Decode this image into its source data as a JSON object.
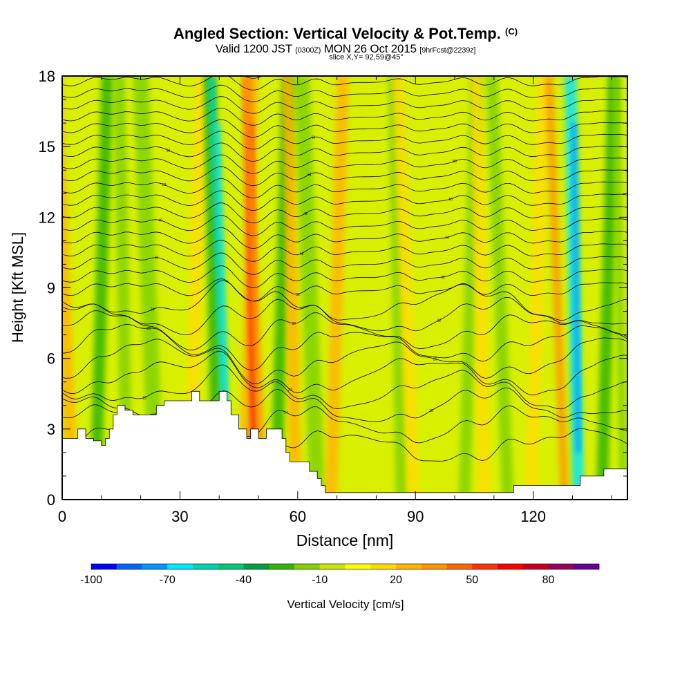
{
  "title": {
    "main": "Angled Section: Vertical Velocity & Pot.Temp.",
    "main_tag": "(C)",
    "valid_prefix": "Valid 1200 JST",
    "valid_utc": "(0300Z)",
    "valid_date": "MON 26 Oct 2015",
    "forecast_tag": "[9hrFcst@2239z]",
    "slice": "slice X,Y= 92,59@45°"
  },
  "chart_data": {
    "type": "heatmap",
    "xlabel": "Distance [nm]",
    "ylabel": "Height [Kft MSL]",
    "xlim": [
      0,
      144
    ],
    "ylim": [
      0,
      18
    ],
    "xticks": [
      "0",
      "30",
      "60",
      "90",
      "120"
    ],
    "yticks": [
      "0",
      "3",
      "6",
      "9",
      "12",
      "15",
      "18"
    ],
    "colorbar": {
      "label": "Vertical Velocity [cm/s]",
      "tick_labels": [
        "-100",
        "-70",
        "-40",
        "-10",
        "20",
        "50",
        "80"
      ],
      "levels_min": -100,
      "levels_step": 10,
      "colors": [
        "#0000ff",
        "#0064ff",
        "#0096ff",
        "#00e6ff",
        "#00d2b4",
        "#00c878",
        "#00a040",
        "#32b400",
        "#82d200",
        "#c8e600",
        "#ffff00",
        "#ffdc00",
        "#ffb400",
        "#ff9600",
        "#ff6400",
        "#ff3200",
        "#ff0000",
        "#c8001e",
        "#96005a",
        "#640096"
      ]
    },
    "bands": [
      {
        "x": 1,
        "w": 3,
        "v": 25
      },
      {
        "x": 7,
        "w": 3,
        "v": -25
      },
      {
        "x": 15,
        "w": 3,
        "v": -15
      },
      {
        "x": 22,
        "w": 4,
        "v": -20
      },
      {
        "x": 31,
        "w": 3,
        "v": 12
      },
      {
        "x": 38,
        "w": 3,
        "v": -30
      },
      {
        "x": 41,
        "w": 2,
        "v": -55
      },
      {
        "x": 45,
        "w": 2,
        "v": 25
      },
      {
        "x": 48,
        "w": 2,
        "v": 45
      },
      {
        "x": 50,
        "w": 2,
        "v": 30
      },
      {
        "x": 53,
        "w": 3,
        "v": -25
      },
      {
        "x": 58,
        "w": 3,
        "v": 25
      },
      {
        "x": 63,
        "w": 4,
        "v": -20
      },
      {
        "x": 67,
        "w": 3,
        "v": 20
      },
      {
        "x": 85,
        "w": 3,
        "v": -18
      },
      {
        "x": 88,
        "w": 3,
        "v": 18
      },
      {
        "x": 101,
        "w": 3,
        "v": -20
      },
      {
        "x": 106,
        "w": 3,
        "v": 15
      },
      {
        "x": 112,
        "w": 3,
        "v": -15
      },
      {
        "x": 118,
        "w": 3,
        "v": 18
      },
      {
        "x": 130,
        "w": 3,
        "v": -65
      },
      {
        "x": 127,
        "w": 2,
        "v": 30
      },
      {
        "x": 136,
        "w": 3,
        "v": -30
      },
      {
        "x": 142,
        "w": 2,
        "v": -15
      }
    ],
    "terrain": [
      [
        0,
        2.6
      ],
      [
        4,
        2.6
      ],
      [
        4,
        3.0
      ],
      [
        6,
        3.0
      ],
      [
        6,
        2.6
      ],
      [
        8,
        2.6
      ],
      [
        8,
        2.5
      ],
      [
        10,
        2.5
      ],
      [
        10,
        2.3
      ],
      [
        11,
        2.3
      ],
      [
        11,
        2.6
      ],
      [
        12,
        2.6
      ],
      [
        12,
        3.0
      ],
      [
        13,
        3.0
      ],
      [
        13,
        3.6
      ],
      [
        14,
        3.6
      ],
      [
        14,
        4.0
      ],
      [
        16,
        4.0
      ],
      [
        16,
        3.8
      ],
      [
        18,
        3.8
      ],
      [
        18,
        3.6
      ],
      [
        24,
        3.6
      ],
      [
        24,
        4.0
      ],
      [
        26,
        4.0
      ],
      [
        26,
        4.2
      ],
      [
        33,
        4.2
      ],
      [
        33,
        4.6
      ],
      [
        35,
        4.6
      ],
      [
        35,
        4.2
      ],
      [
        40,
        4.2
      ],
      [
        40,
        4.6
      ],
      [
        42,
        4.6
      ],
      [
        42,
        4.2
      ],
      [
        43,
        4.2
      ],
      [
        43,
        3.6
      ],
      [
        45,
        3.6
      ],
      [
        45,
        3.0
      ],
      [
        47,
        3.0
      ],
      [
        47,
        2.6
      ],
      [
        48,
        2.6
      ],
      [
        48,
        3.0
      ],
      [
        50,
        3.0
      ],
      [
        50,
        2.6
      ],
      [
        52,
        2.6
      ],
      [
        52,
        3.0
      ],
      [
        56,
        3.0
      ],
      [
        56,
        2.6
      ],
      [
        57,
        2.6
      ],
      [
        57,
        2.0
      ],
      [
        58,
        2.0
      ],
      [
        58,
        1.6
      ],
      [
        63,
        1.6
      ],
      [
        63,
        1.2
      ],
      [
        65,
        1.2
      ],
      [
        65,
        0.9
      ],
      [
        66,
        0.9
      ],
      [
        66,
        0.6
      ],
      [
        67,
        0.6
      ],
      [
        67,
        0.3
      ],
      [
        115,
        0.3
      ],
      [
        115,
        0.6
      ],
      [
        132,
        0.6
      ],
      [
        132,
        1.0
      ],
      [
        138,
        1.0
      ],
      [
        138,
        1.3
      ],
      [
        144,
        1.3
      ],
      [
        144,
        0
      ],
      [
        0,
        0
      ]
    ],
    "theta_contours": {
      "count": 30,
      "label_values": [
        "10",
        "14",
        "18",
        "22",
        "24",
        "26",
        "28",
        "30",
        "32",
        "34",
        "36",
        "38",
        "40",
        "42",
        "44",
        "46",
        "48",
        "50",
        "52",
        "54",
        "56",
        "58",
        "60"
      ]
    }
  }
}
